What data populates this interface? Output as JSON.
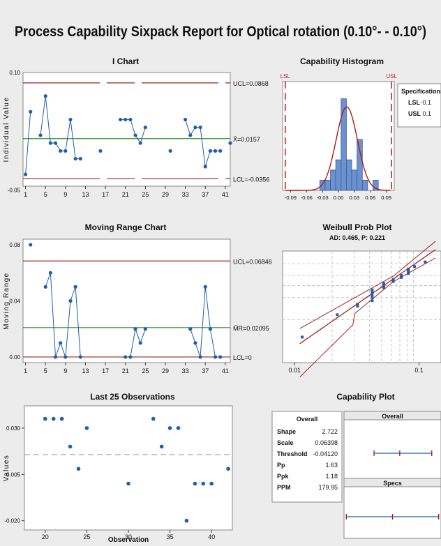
{
  "report_title": "Process Capability Sixpack Report for Optical rotation (0.10°- - 0.10°)",
  "colors": {
    "point": "#1f5fa8",
    "line": "#1f5fa8",
    "limit": "#a02020",
    "center": "#2a8a2a",
    "spec": "#c01818",
    "bar": "#6b92cf"
  },
  "chart_data": [
    {
      "type": "line",
      "title": "I Chart",
      "ylabel": "Individual Value",
      "xlabel": "",
      "x_ticks": [
        1,
        5,
        9,
        13,
        17,
        21,
        25,
        29,
        33,
        37,
        41
      ],
      "y_ticks": [
        0.1,
        -0.05
      ],
      "ylim": [
        -0.045,
        0.1
      ],
      "xlim": [
        0.5,
        42
      ],
      "points": [
        {
          "x": 1,
          "y": -0.03
        },
        {
          "x": 2,
          "y": 0.05
        },
        {
          "x": 4,
          "y": 0.02
        },
        {
          "x": 5,
          "y": 0.07
        },
        {
          "x": 6,
          "y": 0.01
        },
        {
          "x": 7,
          "y": 0.01
        },
        {
          "x": 8,
          "y": 0.0
        },
        {
          "x": 9,
          "y": 0.0
        },
        {
          "x": 10,
          "y": 0.04
        },
        {
          "x": 11,
          "y": -0.01
        },
        {
          "x": 12,
          "y": -0.01
        },
        {
          "x": 16,
          "y": 0.0
        },
        {
          "x": 20,
          "y": 0.04
        },
        {
          "x": 21,
          "y": 0.04
        },
        {
          "x": 22,
          "y": 0.04
        },
        {
          "x": 23,
          "y": 0.02
        },
        {
          "x": 24,
          "y": 0.01
        },
        {
          "x": 25,
          "y": 0.03
        },
        {
          "x": 30,
          "y": 0.0
        },
        {
          "x": 33,
          "y": 0.04
        },
        {
          "x": 34,
          "y": 0.02
        },
        {
          "x": 35,
          "y": 0.03
        },
        {
          "x": 36,
          "y": 0.03
        },
        {
          "x": 37,
          "y": -0.02
        },
        {
          "x": 38,
          "y": 0.0
        },
        {
          "x": 39,
          "y": 0.0
        },
        {
          "x": 40,
          "y": 0.0
        },
        {
          "x": 42,
          "y": 0.01
        }
      ],
      "segments": [
        [
          1,
          2
        ],
        [
          4,
          12
        ],
        [
          20,
          25
        ],
        [
          33,
          40
        ]
      ],
      "ucl": {
        "value": 0.0868,
        "label": "UCL=0.0868"
      },
      "center": {
        "value": 0.0157,
        "label": "X̄=0.0157"
      },
      "lcl": {
        "value": -0.0356,
        "label": "LCL=-0.0356"
      }
    },
    {
      "type": "histogram",
      "title": "Capability Histogram",
      "bins": [
        {
          "from": -0.035,
          "to": -0.025,
          "count": 1
        },
        {
          "from": -0.025,
          "to": -0.015,
          "count": 1
        },
        {
          "from": -0.015,
          "to": -0.005,
          "count": 2
        },
        {
          "from": -0.005,
          "to": 0.005,
          "count": 3
        },
        {
          "from": 0.005,
          "to": 0.015,
          "count": 9
        },
        {
          "from": 0.015,
          "to": 0.025,
          "count": 3
        },
        {
          "from": 0.025,
          "to": 0.035,
          "count": 2
        },
        {
          "from": 0.035,
          "to": 0.045,
          "count": 5
        },
        {
          "from": 0.045,
          "to": 0.055,
          "count": 1
        },
        {
          "from": 0.055,
          "to": 0.065,
          "count": 0
        },
        {
          "from": 0.065,
          "to": 0.075,
          "count": 1
        }
      ],
      "x_ticks": [
        "-0.09",
        "-0.06",
        "-0.03",
        "0.00",
        "0.03",
        "0.06",
        "0.09"
      ],
      "xlim": [
        -0.105,
        0.105
      ],
      "ymax": 10,
      "lsl_label": "LSL",
      "usl_label": "USL",
      "lsl": -0.1,
      "usl": 0.1,
      "fit": {
        "mean": 0.0157,
        "sd": 0.02
      }
    },
    {
      "type": "line",
      "title": "Moving Range Chart",
      "ylabel": "Moving Range",
      "x_ticks": [
        1,
        5,
        9,
        13,
        17,
        21,
        25,
        29,
        33,
        37,
        41
      ],
      "y_ticks": [
        "0.08",
        "0.04",
        "0.00"
      ],
      "ylim": [
        -0.004,
        0.084
      ],
      "xlim": [
        0.5,
        42
      ],
      "points": [
        {
          "x": 2,
          "y": 0.08
        },
        {
          "x": 5,
          "y": 0.05
        },
        {
          "x": 6,
          "y": 0.06
        },
        {
          "x": 7,
          "y": 0.0
        },
        {
          "x": 8,
          "y": 0.01
        },
        {
          "x": 9,
          "y": 0.0
        },
        {
          "x": 10,
          "y": 0.04
        },
        {
          "x": 11,
          "y": 0.05
        },
        {
          "x": 12,
          "y": 0.0
        },
        {
          "x": 21,
          "y": 0.0
        },
        {
          "x": 22,
          "y": 0.0
        },
        {
          "x": 23,
          "y": 0.02
        },
        {
          "x": 24,
          "y": 0.01
        },
        {
          "x": 25,
          "y": 0.02
        },
        {
          "x": 34,
          "y": 0.02
        },
        {
          "x": 35,
          "y": 0.01
        },
        {
          "x": 36,
          "y": 0.0
        },
        {
          "x": 37,
          "y": 0.05
        },
        {
          "x": 38,
          "y": 0.02
        },
        {
          "x": 39,
          "y": 0.0
        },
        {
          "x": 40,
          "y": 0.0
        }
      ],
      "segments": [
        [
          5,
          12
        ],
        [
          21,
          25
        ],
        [
          34,
          40
        ]
      ],
      "ucl": {
        "value": 0.06846,
        "label": "UCL=0.06846"
      },
      "center": {
        "value": 0.02095,
        "label": "M̄R=0.02095"
      },
      "lcl": {
        "value": 0.0,
        "label": "LCL=0"
      }
    },
    {
      "type": "scatter",
      "title": "Weibull Prob Plot",
      "subtitle": "AD: 0.465, P: 0.221",
      "x_ticks": [
        "0.01",
        "0.1"
      ],
      "xlim": [
        0.008,
        0.15
      ],
      "points": [
        {
          "x": 0.0115,
          "p": 0.04
        },
        {
          "x": 0.022,
          "p": 0.13
        },
        {
          "x": 0.032,
          "p": 0.2
        },
        {
          "x": 0.032,
          "p": 0.22
        },
        {
          "x": 0.042,
          "p": 0.26
        },
        {
          "x": 0.042,
          "p": 0.3
        },
        {
          "x": 0.042,
          "p": 0.34
        },
        {
          "x": 0.042,
          "p": 0.38
        },
        {
          "x": 0.042,
          "p": 0.42
        },
        {
          "x": 0.052,
          "p": 0.46
        },
        {
          "x": 0.052,
          "p": 0.5
        },
        {
          "x": 0.052,
          "p": 0.54
        },
        {
          "x": 0.062,
          "p": 0.58
        },
        {
          "x": 0.062,
          "p": 0.62
        },
        {
          "x": 0.072,
          "p": 0.66
        },
        {
          "x": 0.072,
          "p": 0.7
        },
        {
          "x": 0.082,
          "p": 0.74
        },
        {
          "x": 0.082,
          "p": 0.78
        },
        {
          "x": 0.082,
          "p": 0.82
        },
        {
          "x": 0.092,
          "p": 0.86
        },
        {
          "x": 0.112,
          "p": 0.92
        }
      ]
    },
    {
      "type": "scatter",
      "title": "Last 25 Observations",
      "ylabel": "Values",
      "xlabel": "Observation",
      "x_ticks": [
        20,
        25,
        30,
        35,
        40
      ],
      "y_ticks": [
        "0.030",
        "0.005",
        "-0.020"
      ],
      "xlim": [
        17.5,
        42.5
      ],
      "ylim": [
        -0.025,
        0.042
      ],
      "mean": 0.0157,
      "points": [
        {
          "x": 20,
          "y": 0.035
        },
        {
          "x": 21,
          "y": 0.035
        },
        {
          "x": 22,
          "y": 0.035
        },
        {
          "x": 23,
          "y": 0.02
        },
        {
          "x": 24,
          "y": 0.008
        },
        {
          "x": 25,
          "y": 0.03
        },
        {
          "x": 30,
          "y": 0.0
        },
        {
          "x": 33,
          "y": 0.035
        },
        {
          "x": 34,
          "y": 0.02
        },
        {
          "x": 35,
          "y": 0.03
        },
        {
          "x": 36,
          "y": 0.03
        },
        {
          "x": 37,
          "y": -0.02
        },
        {
          "x": 38,
          "y": 0.0
        },
        {
          "x": 39,
          "y": 0.0
        },
        {
          "x": 40,
          "y": 0.0
        },
        {
          "x": 42,
          "y": 0.008
        }
      ]
    },
    {
      "type": "interval",
      "title": "Capability Plot",
      "overall_label": "Overall",
      "specs_label": "Specs",
      "xlim": [
        -0.105,
        0.105
      ],
      "overall_interval": {
        "low": -0.04,
        "mid": 0.0157,
        "high": 0.085
      },
      "specs_interval": {
        "low": -0.1,
        "mid": 0.0,
        "high": 0.1
      }
    }
  ],
  "specifications_box": {
    "title": "Specifications",
    "rows": [
      {
        "label": "LSL",
        "value": "-0.1"
      },
      {
        "label": "USL",
        "value": "0.1"
      }
    ]
  },
  "overall_stats": {
    "title": "Overall",
    "rows": [
      {
        "label": "Shape",
        "value": "2.722"
      },
      {
        "label": "Scale",
        "value": "0.06398"
      },
      {
        "label": "Threshold",
        "value": "-0.04120"
      },
      {
        "label": "Pp",
        "value": "1.63"
      },
      {
        "label": "Ppk",
        "value": "1.18"
      },
      {
        "label": "PPM",
        "value": "179.95"
      }
    ]
  }
}
